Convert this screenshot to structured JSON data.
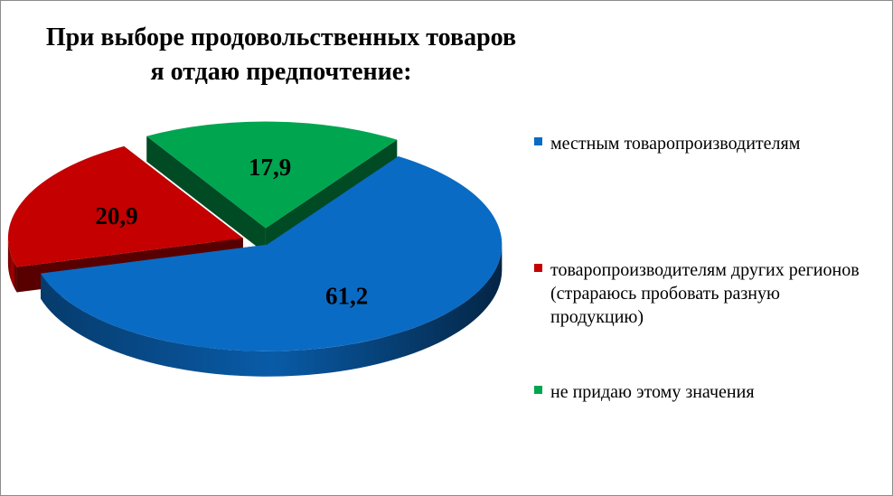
{
  "chart_data": {
    "type": "pie",
    "title": "При выборе продовольственных товаров я отдаю предпочтение:",
    "categories": [
      "местным товаропроизводителям",
      "товаропроизводителям других регионов (страраюсь пробовать разную продукцию)",
      "не придаю этому значения"
    ],
    "values": [
      61.2,
      20.9,
      17.9
    ],
    "value_labels": [
      "61,2",
      "20,9",
      "17,9"
    ],
    "colors": [
      "#0a6bc4",
      "#c40000",
      "#00a550"
    ],
    "legend_position": "right",
    "style": "3d-exploded"
  }
}
